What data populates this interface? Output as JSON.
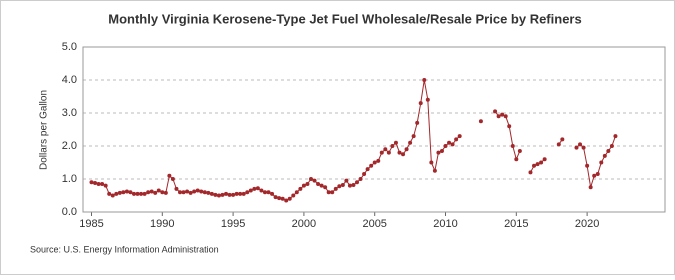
{
  "chart_data": {
    "type": "line",
    "title": "Monthly Virginia Kerosene-Type Jet Fuel Wholesale/Resale Price by Refiners",
    "y_label": "Dollars per Gallon",
    "source": "Source: U.S. Energy Information Administration",
    "x": [
      1985,
      1985.25,
      1985.5,
      1985.75,
      1986,
      1986.25,
      1986.5,
      1986.75,
      1987,
      1987.25,
      1987.5,
      1987.75,
      1988,
      1988.25,
      1988.5,
      1988.75,
      1989,
      1989.25,
      1989.5,
      1989.75,
      1990,
      1990.25,
      1990.5,
      1990.75,
      1991,
      1991.25,
      1991.5,
      1991.75,
      1992,
      1992.25,
      1992.5,
      1992.75,
      1993,
      1993.25,
      1993.5,
      1993.75,
      1994,
      1994.25,
      1994.5,
      1994.75,
      1995,
      1995.25,
      1995.5,
      1995.75,
      1996,
      1996.25,
      1996.5,
      1996.75,
      1997,
      1997.25,
      1997.5,
      1997.75,
      1998,
      1998.25,
      1998.5,
      1998.75,
      1999,
      1999.25,
      1999.5,
      1999.75,
      2000,
      2000.25,
      2000.5,
      2000.75,
      2001,
      2001.25,
      2001.5,
      2001.75,
      2002,
      2002.25,
      2002.5,
      2002.75,
      2003,
      2003.25,
      2003.5,
      2003.75,
      2004,
      2004.25,
      2004.5,
      2004.75,
      2005,
      2005.25,
      2005.5,
      2005.75,
      2006,
      2006.25,
      2006.5,
      2006.75,
      2007,
      2007.25,
      2007.5,
      2007.75,
      2008,
      2008.25,
      2008.5,
      2008.75,
      2009,
      2009.25,
      2009.5,
      2009.75,
      2010,
      2010.25,
      2010.5,
      2010.75,
      2011,
      2011.25,
      2011.5,
      2011.75,
      2012,
      2012.25,
      2012.5,
      2012.75,
      2013,
      2013.25,
      2013.5,
      2013.75,
      2014,
      2014.25,
      2014.5,
      2014.75,
      2015,
      2015.25,
      2015.5,
      2015.75,
      2016,
      2016.25,
      2016.5,
      2016.75,
      2017,
      2017.25,
      2017.5,
      2017.75,
      2018,
      2018.25,
      2018.5,
      2018.75,
      2019,
      2019.25,
      2019.5,
      2019.75,
      2020,
      2020.25,
      2020.5,
      2020.75,
      2021,
      2021.25,
      2021.5,
      2021.75,
      2022
    ],
    "series": [
      {
        "name": "Virginia Kerosene-Type Jet Fuel Wholesale/Resale Price by Refiners",
        "color": "#a3282b",
        "values": [
          0.9,
          0.88,
          0.85,
          0.85,
          0.8,
          0.55,
          0.5,
          0.55,
          0.58,
          0.6,
          0.62,
          0.6,
          0.55,
          0.55,
          0.55,
          0.55,
          0.6,
          0.62,
          0.58,
          0.65,
          0.6,
          0.58,
          1.1,
          1.0,
          0.7,
          0.6,
          0.6,
          0.62,
          0.58,
          0.62,
          0.65,
          0.62,
          0.6,
          0.58,
          0.55,
          0.52,
          0.5,
          0.52,
          0.55,
          0.52,
          0.52,
          0.55,
          0.55,
          0.55,
          0.6,
          0.65,
          0.7,
          0.72,
          0.65,
          0.6,
          0.6,
          0.55,
          0.45,
          0.42,
          0.4,
          0.35,
          0.4,
          0.5,
          0.6,
          0.7,
          0.8,
          0.85,
          1.0,
          0.95,
          0.85,
          0.8,
          0.75,
          0.6,
          0.6,
          0.7,
          0.78,
          0.82,
          0.95,
          0.8,
          0.82,
          0.9,
          1.0,
          1.15,
          1.3,
          1.4,
          1.5,
          1.55,
          1.8,
          1.9,
          1.8,
          2.0,
          2.1,
          1.8,
          1.75,
          1.9,
          2.1,
          2.3,
          2.7,
          3.3,
          4.0,
          3.4,
          1.5,
          1.25,
          1.8,
          1.85,
          2.0,
          2.1,
          2.05,
          2.2,
          2.3,
          null,
          null,
          null,
          null,
          null,
          2.75,
          null,
          null,
          null,
          3.05,
          2.9,
          2.95,
          2.9,
          2.6,
          2.0,
          1.6,
          1.85,
          null,
          null,
          1.2,
          1.4,
          1.45,
          1.5,
          1.6,
          null,
          null,
          null,
          2.05,
          2.2,
          null,
          null,
          null,
          1.95,
          2.05,
          1.95,
          1.4,
          0.75,
          1.1,
          1.15,
          1.5,
          1.7,
          1.85,
          2.0,
          2.3
        ]
      }
    ],
    "xlim": [
      1984.4,
      2025.5
    ],
    "xticks": [
      1985,
      1990,
      1995,
      2000,
      2005,
      2010,
      2015,
      2020
    ],
    "ylim": [
      0,
      5
    ],
    "yticks": [
      {
        "value": 0,
        "label": "0.0"
      },
      {
        "value": 1,
        "label": "1.0"
      },
      {
        "value": 2,
        "label": "2.0"
      },
      {
        "value": 3,
        "label": "3.0"
      },
      {
        "value": 4,
        "label": "4.0"
      },
      {
        "value": 5,
        "label": "5.0"
      }
    ],
    "grid": true
  }
}
